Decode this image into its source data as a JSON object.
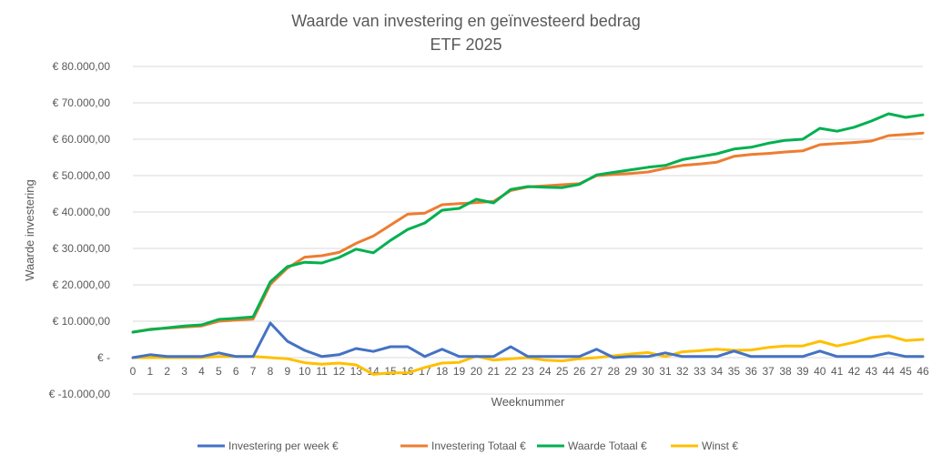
{
  "chart_data": {
    "type": "line",
    "title": "Waarde van investering en geïnvesteerd bedrag",
    "subtitle": "ETF 2025",
    "xlabel": "Weeknummer",
    "ylabel": "Waarde investering",
    "ylim": [
      -10000,
      80000
    ],
    "y_ticks": [
      80000,
      70000,
      60000,
      50000,
      40000,
      30000,
      20000,
      10000,
      0,
      -10000
    ],
    "y_tick_labels": [
      "€ 80.000,00",
      "€ 70.000,00",
      "€ 60.000,00",
      "€ 50.000,00",
      "€ 40.000,00",
      "€ 30.000,00",
      "€ 20.000,00",
      "€ 10.000,00",
      "€ -",
      "€ -10.000,00"
    ],
    "grid": true,
    "legend_position": "bottom",
    "x": [
      0,
      1,
      2,
      3,
      4,
      5,
      6,
      7,
      8,
      9,
      10,
      11,
      12,
      13,
      14,
      15,
      16,
      17,
      18,
      19,
      20,
      21,
      22,
      23,
      24,
      25,
      26,
      27,
      28,
      29,
      30,
      31,
      32,
      33,
      34,
      35,
      36,
      37,
      38,
      39,
      40,
      41,
      42,
      43,
      44,
      45,
      46
    ],
    "series": [
      {
        "name": "Investering per week €",
        "color": "#4472c4",
        "values": [
          0,
          800,
          300,
          300,
          300,
          1300,
          300,
          300,
          9500,
          4500,
          2000,
          300,
          800,
          2500,
          1700,
          3000,
          3000,
          300,
          2300,
          300,
          300,
          300,
          3000,
          300,
          300,
          300,
          300,
          2300,
          0,
          300,
          300,
          1300,
          300,
          300,
          300,
          1800,
          300,
          300,
          300,
          300,
          1800,
          300,
          300,
          300,
          1300,
          300,
          300
        ]
      },
      {
        "name": "Investering Totaal €",
        "color": "#ed7d31",
        "values": [
          7000,
          7800,
          8100,
          8400,
          8700,
          10000,
          10300,
          10600,
          20100,
          24600,
          27600,
          28000,
          28900,
          31400,
          33400,
          36400,
          39400,
          39700,
          42000,
          42300,
          42600,
          42900,
          45900,
          46900,
          47200,
          47500,
          47800,
          50000,
          50300,
          50600,
          51000,
          52000,
          52800,
          53200,
          53700,
          55300,
          55800,
          56100,
          56500,
          56800,
          58500,
          58800,
          59100,
          59500,
          61000,
          61300,
          61700
        ]
      },
      {
        "name": "Waarde Totaal €",
        "color": "#00b050",
        "values": [
          7000,
          7700,
          8200,
          8700,
          9000,
          10500,
          10800,
          11200,
          20800,
          25000,
          26200,
          26000,
          27500,
          29800,
          28800,
          32200,
          35200,
          37000,
          40500,
          41000,
          43500,
          42500,
          46200,
          47000,
          46800,
          46700,
          47600,
          50200,
          50900,
          51600,
          52300,
          52800,
          54400,
          55200,
          56000,
          57300,
          57800,
          58900,
          59700,
          60000,
          63000,
          62200,
          63300,
          65000,
          67000,
          66000,
          66700
        ]
      },
      {
        "name": "Winst €",
        "color": "#ffc000",
        "values": [
          0,
          0,
          0,
          0,
          0,
          300,
          300,
          300,
          0,
          -300,
          -1400,
          -1800,
          -1500,
          -2000,
          -4600,
          -4200,
          -4200,
          -2700,
          -1500,
          -1300,
          400,
          -700,
          -300,
          0,
          -700,
          -900,
          -300,
          0,
          500,
          1000,
          1400,
          300,
          1600,
          1900,
          2300,
          2000,
          2100,
          2800,
          3200,
          3200,
          4500,
          3200,
          4200,
          5500,
          6000,
          4700,
          5000
        ]
      }
    ]
  }
}
